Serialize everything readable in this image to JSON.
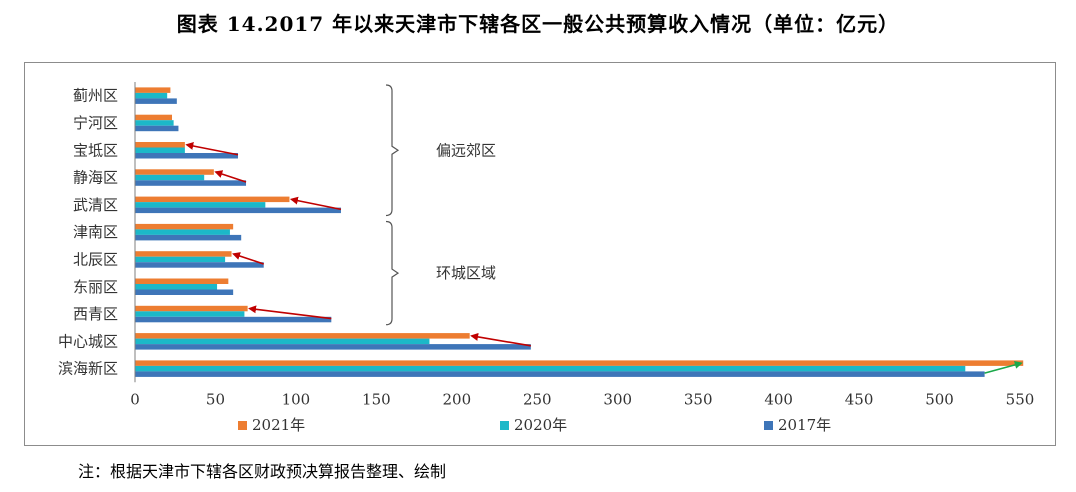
{
  "title": "图表 14.2017 年以来天津市下辖各区一般公共预算收入情况（单位：亿元）",
  "note": "注：根据天津市下辖各区财政预决算报告整理、绘制",
  "chart_data": {
    "type": "bar",
    "orientation": "horizontal",
    "categories": [
      "蓟州区",
      "宁河区",
      "宝坻区",
      "静海区",
      "武清区",
      "津南区",
      "北辰区",
      "东丽区",
      "西青区",
      "中心城区",
      "滨海新区"
    ],
    "series": [
      {
        "name": "2021年",
        "color": "#ed7d31",
        "values": [
          22,
          23,
          31,
          49,
          96,
          61,
          60,
          58,
          70,
          208,
          552
        ]
      },
      {
        "name": "2020年",
        "color": "#1cb8c8",
        "values": [
          20,
          24,
          31,
          43,
          81,
          59,
          56,
          51,
          68,
          183,
          516
        ]
      },
      {
        "name": "2017年",
        "color": "#3e75b8",
        "values": [
          26,
          27,
          64,
          69,
          128,
          66,
          80,
          61,
          122,
          246,
          528
        ]
      }
    ],
    "xlim": [
      0,
      550
    ],
    "xticks": [
      0,
      50,
      100,
      150,
      200,
      250,
      300,
      350,
      400,
      450,
      500,
      550
    ],
    "legend_position": "bottom",
    "groups": [
      {
        "label": "偏远郊区",
        "from": "蓟州区",
        "to": "武清区"
      },
      {
        "label": "环城区域",
        "from": "津南区",
        "to": "西青区"
      }
    ],
    "arrows": [
      {
        "category": "宝坻区",
        "from": 64,
        "to": 31,
        "color": "#c00000"
      },
      {
        "category": "静海区",
        "from": 69,
        "to": 49,
        "color": "#c00000"
      },
      {
        "category": "武清区",
        "from": 128,
        "to": 96,
        "color": "#c00000"
      },
      {
        "category": "北辰区",
        "from": 80,
        "to": 60,
        "color": "#c00000"
      },
      {
        "category": "西青区",
        "from": 122,
        "to": 70,
        "color": "#c00000"
      },
      {
        "category": "中心城区",
        "from": 246,
        "to": 208,
        "color": "#c00000"
      },
      {
        "category": "滨海新区",
        "from": 528,
        "to": 552,
        "color": "#1aa84a"
      }
    ]
  }
}
